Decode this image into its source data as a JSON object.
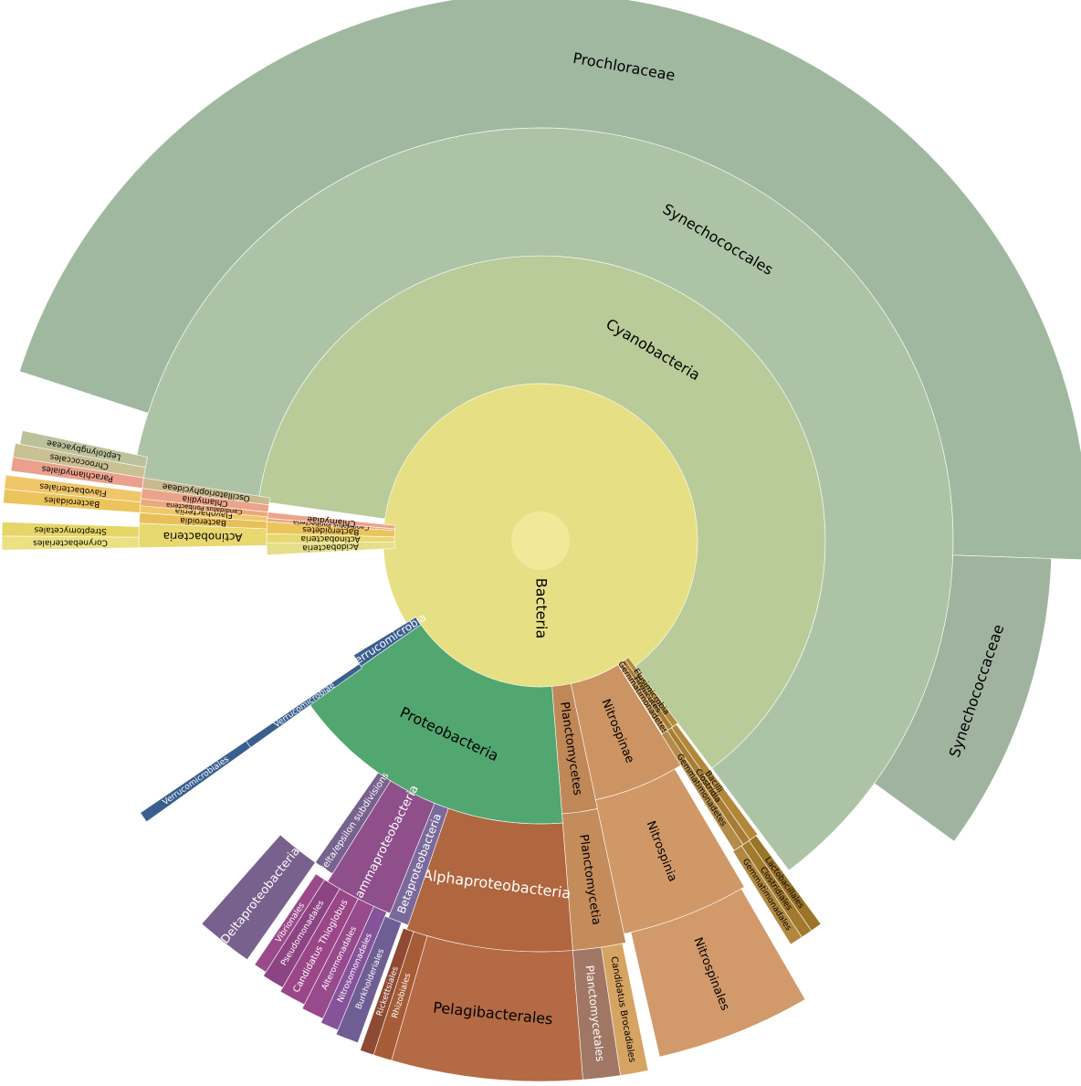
{
  "chart_data": {
    "type": "sunburst",
    "title": "",
    "root": {
      "name": "Bacteria",
      "color": "#e7df84",
      "center_color": "#f1e899"
    },
    "nodes": [
      {
        "name": "Cyanobacteria",
        "level": 1,
        "start": -82.0,
        "end": 143.0,
        "color": "#b9cb98",
        "label_color": "#000000"
      },
      {
        "name": "Synechococcales",
        "level": 2,
        "start": -82.0,
        "end": 143.0,
        "color": "#adc3a6",
        "label_color": "#000000"
      },
      {
        "name": "Prochloraceae",
        "level": 3,
        "start": -72.0,
        "end": 92.0,
        "color": "#a1b8a0",
        "label_color": "#000000"
      },
      {
        "name": "Synechococcaceae",
        "level": 3,
        "start": 92.0,
        "end": 126.0,
        "color": "#9fb39f",
        "label_color": "#000000"
      },
      {
        "name": "Acidobacteria",
        "level": 1,
        "start": -93.0,
        "end": -90.5,
        "color": "#e5de8a",
        "label_color": "#000000"
      },
      {
        "name": "Actinobacteria",
        "level": 1,
        "start": -90.5,
        "end": -88.5,
        "color": "#e8d870",
        "label_color": "#000000"
      },
      {
        "name": "Actinobacteria",
        "level": 2,
        "start": -91.0,
        "end": -87.5,
        "color": "#e8d870",
        "label_color": "#000000"
      },
      {
        "name": "Corynebacteriales",
        "level": 4,
        "start": -91.0,
        "end": -89.5,
        "color": "#ebe082",
        "label_color": "#000000"
      },
      {
        "name": "Streptomycetales",
        "level": 4,
        "start": -89.5,
        "end": -88.0,
        "color": "#e6d668",
        "label_color": "#000000"
      },
      {
        "name": "Bacteroidetes",
        "level": 1,
        "start": -88.5,
        "end": -86.0,
        "color": "#ecc45c",
        "label_color": "#000000"
      },
      {
        "name": "Bacteroidia",
        "level": 2,
        "start": -87.5,
        "end": -86.0,
        "color": "#e8c05a",
        "label_color": "#000000"
      },
      {
        "name": "Flavobacteriia",
        "level": 2,
        "start": -86.0,
        "end": -84.5,
        "color": "#efc869",
        "label_color": "#000000"
      },
      {
        "name": "Bacteroidales",
        "level": 4,
        "start": -86.0,
        "end": -84.5,
        "color": "#ecc45c",
        "label_color": "#000000"
      },
      {
        "name": "Flavobacteriales",
        "level": 4,
        "start": -84.5,
        "end": -83.0,
        "color": "#f0c66a",
        "label_color": "#000000"
      },
      {
        "name": "Candidatus Poribacteria",
        "level": 1,
        "start": -86.0,
        "end": -85.3,
        "color": "#e9a97a",
        "label_color": "#000000"
      },
      {
        "name": "Candidatus Poribacteria",
        "level": 2,
        "start": -85.0,
        "end": -84.0,
        "color": "#e9a97a",
        "label_color": "#000000"
      },
      {
        "name": "Chlamydiae",
        "level": 1,
        "start": -85.3,
        "end": -84.0,
        "color": "#eba48a",
        "label_color": "#000000"
      },
      {
        "name": "Chlamydiia",
        "level": 2,
        "start": -84.0,
        "end": -82.5,
        "color": "#eba48a",
        "label_color": "#000000"
      },
      {
        "name": "Parachlamydiales",
        "level": 4,
        "start": -82.5,
        "end": -81.0,
        "color": "#eaa08c",
        "label_color": "#000000"
      },
      {
        "name": "Chroococcales",
        "level": 4,
        "start": -81.0,
        "end": -79.5,
        "color": "#c9c093",
        "label_color": "#000000"
      },
      {
        "name": "Oscillatoriophycideae",
        "level": 2,
        "start": -82.5,
        "end": -81.0,
        "color": "#c8ba8e",
        "label_color": "#000000"
      },
      {
        "name": "Leptolyngbyaceae",
        "level": 4,
        "start": -79.5,
        "end": -78.0,
        "color": "#bbc29b",
        "label_color": "#000000"
      },
      {
        "name": "Elusimicrobia",
        "level": 1,
        "start": 143.0,
        "end": 144.6,
        "color": "#b08a3c",
        "label_color": "#000000"
      },
      {
        "name": "Firmicutes",
        "level": 1,
        "start": 144.6,
        "end": 146.0,
        "color": "#a67c30",
        "label_color": "#000000"
      },
      {
        "name": "Gemmatimonadetes",
        "level": 1,
        "start": 146.0,
        "end": 147.8,
        "color": "#c49455",
        "label_color": "#000000"
      },
      {
        "name": "Bacilli",
        "level": 2,
        "start": 143.5,
        "end": 145.0,
        "color": "#b2873a",
        "label_color": "#000000"
      },
      {
        "name": "Clostridia",
        "level": 2,
        "start": 145.0,
        "end": 146.3,
        "color": "#a87d33",
        "label_color": "#000000"
      },
      {
        "name": "Gemmatimonadetes",
        "level": 2,
        "start": 146.3,
        "end": 148.0,
        "color": "#b48b48",
        "label_color": "#000000"
      },
      {
        "name": "Lactobacillales",
        "level": 3,
        "start": 143.8,
        "end": 145.2,
        "color": "#9c7428",
        "label_color": "#000000"
      },
      {
        "name": "Clostridiales",
        "level": 3,
        "start": 145.2,
        "end": 146.6,
        "color": "#a27a2e",
        "label_color": "#000000"
      },
      {
        "name": "Gemmatimonadales",
        "level": 3,
        "start": 146.6,
        "end": 148.2,
        "color": "#b08840",
        "label_color": "#000000"
      },
      {
        "name": "Nitrospinae",
        "level": 1,
        "start": 148.0,
        "end": 168.0,
        "color": "#cc9463",
        "label_color": "#000000"
      },
      {
        "name": "Nitrospinia",
        "level": 2,
        "start": 149.5,
        "end": 168.0,
        "color": "#d09867",
        "label_color": "#000000"
      },
      {
        "name": "Nitrospinales",
        "level": 3,
        "start": 150.0,
        "end": 167.0,
        "color": "#d29a6a",
        "label_color": "#000000"
      },
      {
        "name": "Planctomycetes",
        "level": 1,
        "start": 168.0,
        "end": 175.5,
        "color": "#c08757",
        "label_color": "#000000"
      },
      {
        "name": "Planctomycetia",
        "level": 2,
        "start": 168.0,
        "end": 175.5,
        "color": "#c48b5b",
        "label_color": "#000000"
      },
      {
        "name": "Candidatus Brocadiales",
        "level": 3,
        "start": 168.5,
        "end": 171.5,
        "color": "#d6a462",
        "label_color": "#000000"
      },
      {
        "name": "Planctomycetales",
        "level": 3,
        "start": 171.5,
        "end": 175.5,
        "color": "#a07764",
        "label_color": "#ffffff"
      },
      {
        "name": "Proteobacteria",
        "level": 1,
        "start": 175.5,
        "end": 235.0,
        "color": "#52a66f",
        "label_color": "#000000"
      },
      {
        "name": "Alphaproteobacteria",
        "level": 2,
        "start": 175.5,
        "end": 199.0,
        "color": "#b0663f",
        "label_color": "#ffffff"
      },
      {
        "name": "Pelagibacterales",
        "level": 3,
        "start": 175.5,
        "end": 196.0,
        "color": "#b46a44",
        "label_color": "#000000"
      },
      {
        "name": "Rhizobiales",
        "level": 3,
        "start": 196.0,
        "end": 198.0,
        "color": "#a65c36",
        "label_color": "#ffffff"
      },
      {
        "name": "Rickettsiales",
        "level": 3,
        "start": 198.0,
        "end": 199.5,
        "color": "#8e4a32",
        "label_color": "#ffffff"
      },
      {
        "name": "Betaproteobacteria",
        "level": 2,
        "start": 199.0,
        "end": 202.0,
        "color": "#7a6a9c",
        "label_color": "#ffffff"
      },
      {
        "name": "Burkholderiales",
        "level": 3,
        "start": 200.0,
        "end": 202.5,
        "color": "#6e5e93",
        "label_color": "#ffffff"
      },
      {
        "name": "Nitrosomonadales",
        "level": 3,
        "start": 202.5,
        "end": 204.5,
        "color": "#86539a",
        "label_color": "#ffffff"
      },
      {
        "name": "Gammaproteobacteria",
        "level": 2,
        "start": 202.0,
        "end": 212.0,
        "color": "#8e4f8a",
        "label_color": "#ffffff"
      },
      {
        "name": "Alteromonadales",
        "level": 3,
        "start": 204.5,
        "end": 207.0,
        "color": "#974a8c",
        "label_color": "#ffffff"
      },
      {
        "name": "Candidatus Thioglobus",
        "level": 3,
        "start": 207.0,
        "end": 210.0,
        "color": "#9b4787",
        "label_color": "#ffffff"
      },
      {
        "name": "Pseudomonadales",
        "level": 3,
        "start": 210.0,
        "end": 212.5,
        "color": "#8c4483",
        "label_color": "#ffffff"
      },
      {
        "name": "Vibrionales",
        "level": 3,
        "start": 212.5,
        "end": 214.0,
        "color": "#9a4a8a",
        "label_color": "#ffffff"
      },
      {
        "name": "delta/epsilon subdivisions",
        "level": 2,
        "start": 212.0,
        "end": 215.0,
        "color": "#78628f",
        "label_color": "#ffffff"
      },
      {
        "name": "Deltaproteobacteria",
        "level": 3,
        "start": 215.0,
        "end": 221.5,
        "color": "#79618d",
        "label_color": "#ffffff"
      },
      {
        "name": "Verrucomicrobia",
        "level": 1,
        "start": 235.0,
        "end": 238.5,
        "color": "#3a5f8f",
        "label_color": "#ffffff"
      },
      {
        "name": "Verrucomicrobiae",
        "level": 2,
        "start": 234.5,
        "end": 235.8,
        "color": "#3a5f8f",
        "label_color": "#ffffff"
      },
      {
        "name": "Verrucomicrobiales",
        "level": 3,
        "start": 234.5,
        "end": 235.8,
        "color": "#3a5f8f",
        "label_color": "#ffffff"
      }
    ]
  }
}
